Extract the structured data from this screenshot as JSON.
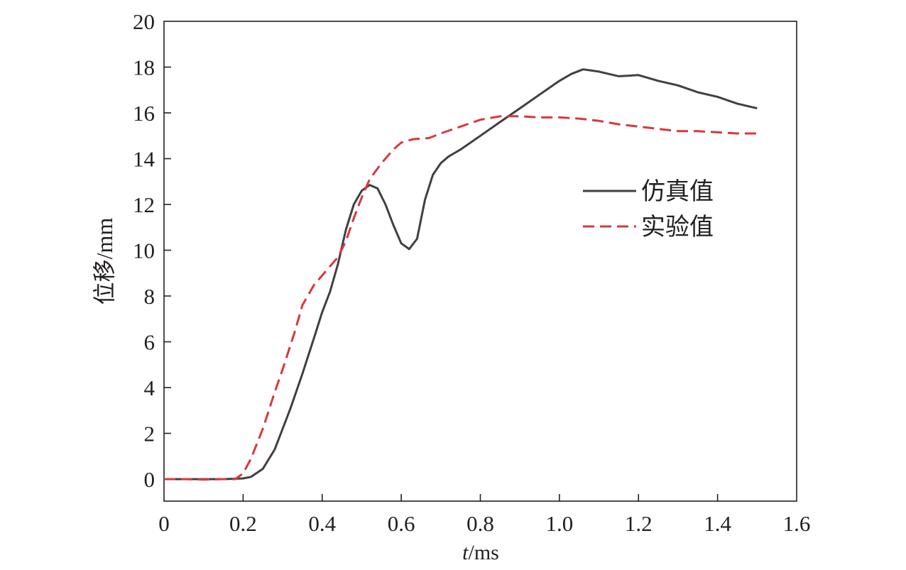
{
  "chart_data": {
    "type": "line",
    "xlabel_italic": "t",
    "xlabel_rest": "/ms",
    "ylabel": "位移/mm",
    "xlim": [
      0,
      1.6
    ],
    "ylim": [
      -1,
      20
    ],
    "xticks": [
      0,
      0.2,
      0.4,
      0.6,
      0.8,
      1.0,
      1.2,
      1.4,
      1.6
    ],
    "xtick_labels": [
      "0",
      "0.2",
      "0.4",
      "0.6",
      "0.8",
      "1.0",
      "1.2",
      "1.4",
      "1.6"
    ],
    "yticks": [
      0,
      2,
      4,
      6,
      8,
      10,
      12,
      14,
      16,
      18,
      20
    ],
    "ytick_labels": [
      "0",
      "2",
      "4",
      "6",
      "8",
      "10",
      "12",
      "14",
      "16",
      "18",
      "20"
    ],
    "grid": false,
    "legend_position": "right, upper-middle",
    "series": [
      {
        "name": "仿真值",
        "color": "#404041",
        "dash": "solid",
        "points": [
          [
            0,
            0
          ],
          [
            0.05,
            0
          ],
          [
            0.1,
            0
          ],
          [
            0.15,
            0
          ],
          [
            0.2,
            0.03
          ],
          [
            0.22,
            0.1
          ],
          [
            0.25,
            0.45
          ],
          [
            0.28,
            1.3
          ],
          [
            0.3,
            2.2
          ],
          [
            0.32,
            3.1
          ],
          [
            0.35,
            4.6
          ],
          [
            0.38,
            6.2
          ],
          [
            0.4,
            7.3
          ],
          [
            0.42,
            8.2
          ],
          [
            0.44,
            9.4
          ],
          [
            0.46,
            10.9
          ],
          [
            0.48,
            12.0
          ],
          [
            0.5,
            12.6
          ],
          [
            0.52,
            12.85
          ],
          [
            0.54,
            12.7
          ],
          [
            0.56,
            12.0
          ],
          [
            0.58,
            11.1
          ],
          [
            0.6,
            10.3
          ],
          [
            0.62,
            10.05
          ],
          [
            0.64,
            10.5
          ],
          [
            0.66,
            12.2
          ],
          [
            0.68,
            13.3
          ],
          [
            0.7,
            13.8
          ],
          [
            0.72,
            14.1
          ],
          [
            0.75,
            14.4
          ],
          [
            0.8,
            15.0
          ],
          [
            0.85,
            15.6
          ],
          [
            0.9,
            16.2
          ],
          [
            0.95,
            16.8
          ],
          [
            1.0,
            17.4
          ],
          [
            1.03,
            17.7
          ],
          [
            1.06,
            17.9
          ],
          [
            1.1,
            17.8
          ],
          [
            1.15,
            17.6
          ],
          [
            1.2,
            17.65
          ],
          [
            1.25,
            17.4
          ],
          [
            1.3,
            17.2
          ],
          [
            1.35,
            16.9
          ],
          [
            1.4,
            16.7
          ],
          [
            1.45,
            16.4
          ],
          [
            1.5,
            16.2
          ]
        ]
      },
      {
        "name": "实验值",
        "color": "#d9383a",
        "dash": "dashed",
        "points": [
          [
            0,
            0
          ],
          [
            0.05,
            0
          ],
          [
            0.1,
            -0.02
          ],
          [
            0.15,
            0
          ],
          [
            0.18,
            0
          ],
          [
            0.2,
            0.25
          ],
          [
            0.22,
            0.9
          ],
          [
            0.25,
            2.2
          ],
          [
            0.28,
            3.8
          ],
          [
            0.3,
            4.8
          ],
          [
            0.33,
            6.4
          ],
          [
            0.35,
            7.6
          ],
          [
            0.38,
            8.5
          ],
          [
            0.4,
            8.9
          ],
          [
            0.42,
            9.3
          ],
          [
            0.44,
            9.7
          ],
          [
            0.46,
            10.4
          ],
          [
            0.48,
            11.4
          ],
          [
            0.5,
            12.3
          ],
          [
            0.52,
            13.1
          ],
          [
            0.55,
            13.8
          ],
          [
            0.58,
            14.4
          ],
          [
            0.6,
            14.7
          ],
          [
            0.63,
            14.85
          ],
          [
            0.67,
            14.9
          ],
          [
            0.7,
            15.1
          ],
          [
            0.75,
            15.4
          ],
          [
            0.8,
            15.7
          ],
          [
            0.85,
            15.85
          ],
          [
            0.9,
            15.85
          ],
          [
            0.95,
            15.8
          ],
          [
            1.0,
            15.8
          ],
          [
            1.05,
            15.75
          ],
          [
            1.1,
            15.65
          ],
          [
            1.15,
            15.5
          ],
          [
            1.2,
            15.4
          ],
          [
            1.25,
            15.3
          ],
          [
            1.3,
            15.2
          ],
          [
            1.35,
            15.2
          ],
          [
            1.4,
            15.15
          ],
          [
            1.45,
            15.1
          ],
          [
            1.5,
            15.1
          ]
        ]
      }
    ]
  }
}
